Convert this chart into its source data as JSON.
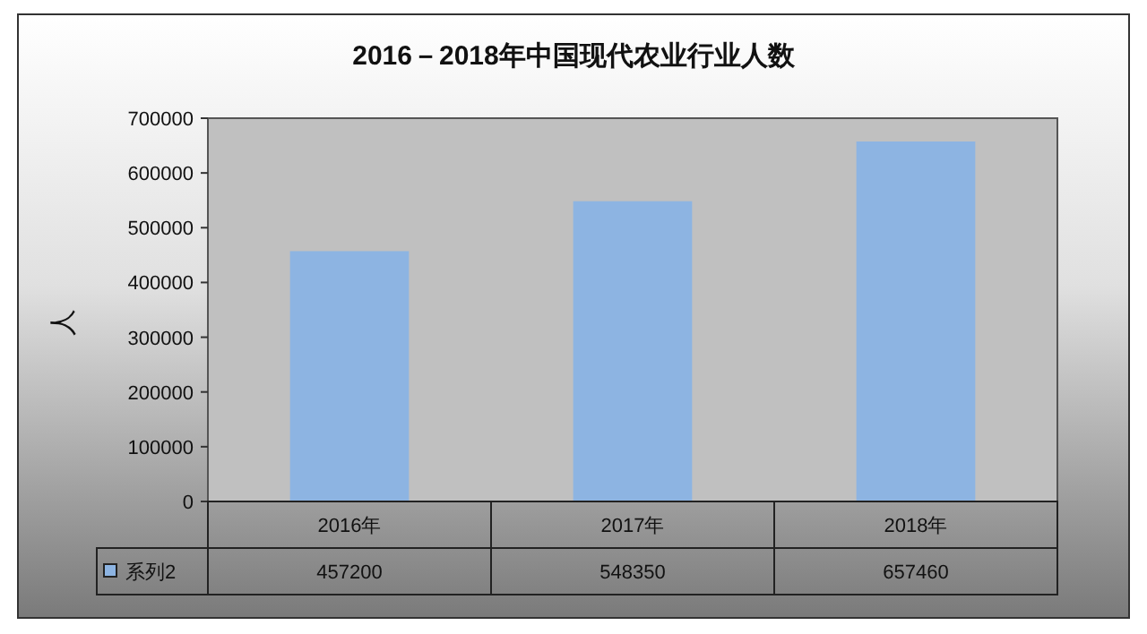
{
  "chart_data": {
    "type": "bar",
    "title": "2016－2018年中国现代农业行业人数",
    "ylabel": "人",
    "categories": [
      "2016年",
      "2017年",
      "2018年"
    ],
    "series": [
      {
        "name": "系列2",
        "color": "#8db4e2",
        "values": [
          457200,
          548350,
          657460
        ]
      }
    ],
    "ylim": [
      0,
      700000
    ],
    "yticks": [
      0,
      100000,
      200000,
      300000,
      400000,
      500000,
      600000,
      700000
    ],
    "data_labels": true,
    "legend": "bottom left"
  }
}
